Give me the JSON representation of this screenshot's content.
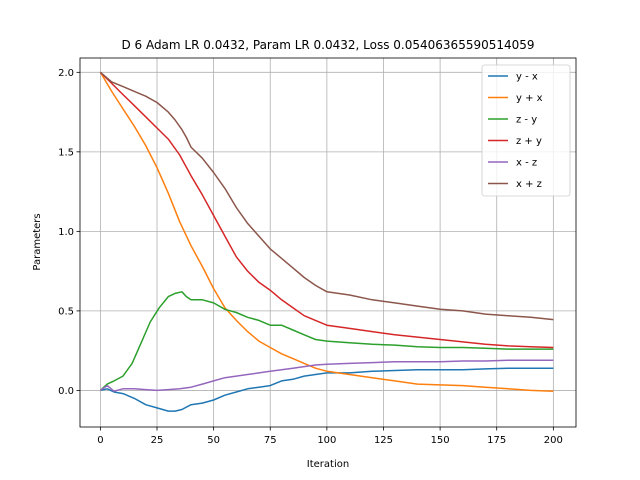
{
  "chart_data": {
    "type": "line",
    "title": "D 6 Adam LR 0.0432, Param LR 0.0432, Loss 0.05406365590514059",
    "xlabel": "Iteration",
    "ylabel": "Parameters",
    "xlim": [
      -9,
      210
    ],
    "ylim": [
      -0.23,
      2.09
    ],
    "xticks": [
      0,
      25,
      50,
      75,
      100,
      125,
      150,
      175,
      200
    ],
    "yticks": [
      0.0,
      0.5,
      1.0,
      1.5,
      2.0
    ],
    "ytick_labels": [
      "0.0",
      "0.5",
      "1.0",
      "1.5",
      "2.0"
    ],
    "grid": true,
    "legend_position": "top-right",
    "series": [
      {
        "name": "y - x",
        "color": "#1f77b4",
        "x": [
          0,
          3,
          6,
          10,
          15,
          20,
          25,
          30,
          33,
          36,
          40,
          45,
          50,
          55,
          60,
          65,
          70,
          75,
          80,
          85,
          90,
          95,
          100,
          110,
          120,
          130,
          140,
          150,
          160,
          170,
          180,
          190,
          200
        ],
        "y": [
          0.0,
          0.01,
          -0.01,
          -0.02,
          -0.05,
          -0.09,
          -0.11,
          -0.13,
          -0.13,
          -0.12,
          -0.09,
          -0.08,
          -0.06,
          -0.03,
          -0.01,
          0.01,
          0.02,
          0.03,
          0.06,
          0.07,
          0.09,
          0.1,
          0.11,
          0.11,
          0.12,
          0.125,
          0.13,
          0.13,
          0.13,
          0.135,
          0.14,
          0.14,
          0.14
        ]
      },
      {
        "name": "y + x",
        "color": "#ff7f0e",
        "x": [
          0,
          5,
          10,
          15,
          20,
          25,
          30,
          35,
          40,
          45,
          50,
          55,
          60,
          65,
          70,
          75,
          80,
          85,
          90,
          95,
          100,
          110,
          120,
          130,
          140,
          150,
          160,
          170,
          180,
          190,
          200
        ],
        "y": [
          2.0,
          1.88,
          1.77,
          1.66,
          1.54,
          1.4,
          1.24,
          1.06,
          0.91,
          0.78,
          0.64,
          0.52,
          0.44,
          0.37,
          0.31,
          0.27,
          0.23,
          0.2,
          0.17,
          0.14,
          0.12,
          0.1,
          0.08,
          0.06,
          0.04,
          0.035,
          0.03,
          0.02,
          0.01,
          0.0,
          -0.005
        ]
      },
      {
        "name": "z - y",
        "color": "#2ca02c",
        "x": [
          0,
          3,
          6,
          10,
          14,
          18,
          22,
          26,
          30,
          33,
          36,
          38,
          40,
          45,
          50,
          55,
          60,
          65,
          70,
          75,
          80,
          85,
          90,
          95,
          100,
          110,
          120,
          130,
          140,
          150,
          160,
          170,
          180,
          190,
          200
        ],
        "y": [
          0.0,
          0.04,
          0.06,
          0.09,
          0.17,
          0.3,
          0.43,
          0.52,
          0.59,
          0.61,
          0.62,
          0.59,
          0.57,
          0.57,
          0.55,
          0.51,
          0.49,
          0.46,
          0.44,
          0.41,
          0.41,
          0.38,
          0.35,
          0.32,
          0.31,
          0.3,
          0.29,
          0.285,
          0.275,
          0.27,
          0.27,
          0.265,
          0.26,
          0.26,
          0.26
        ]
      },
      {
        "name": "z + y",
        "color": "#d62728",
        "x": [
          0,
          5,
          10,
          15,
          20,
          25,
          30,
          35,
          40,
          45,
          50,
          55,
          60,
          65,
          70,
          75,
          80,
          85,
          90,
          95,
          100,
          110,
          120,
          130,
          140,
          150,
          160,
          170,
          180,
          190,
          200
        ],
        "y": [
          2.0,
          1.93,
          1.86,
          1.79,
          1.72,
          1.65,
          1.58,
          1.48,
          1.35,
          1.23,
          1.1,
          0.97,
          0.84,
          0.75,
          0.68,
          0.63,
          0.57,
          0.52,
          0.47,
          0.44,
          0.41,
          0.39,
          0.37,
          0.35,
          0.335,
          0.32,
          0.305,
          0.29,
          0.28,
          0.275,
          0.27
        ]
      },
      {
        "name": "x - z",
        "color": "#9467bd",
        "x": [
          0,
          3,
          6,
          10,
          15,
          20,
          25,
          30,
          35,
          40,
          45,
          50,
          55,
          60,
          65,
          70,
          75,
          80,
          85,
          90,
          95,
          100,
          110,
          120,
          130,
          140,
          150,
          160,
          170,
          180,
          190,
          200
        ],
        "y": [
          0.0,
          0.03,
          -0.005,
          0.01,
          0.01,
          0.005,
          0.0,
          0.005,
          0.01,
          0.02,
          0.04,
          0.06,
          0.08,
          0.09,
          0.1,
          0.11,
          0.12,
          0.13,
          0.14,
          0.15,
          0.16,
          0.165,
          0.17,
          0.175,
          0.18,
          0.18,
          0.18,
          0.185,
          0.185,
          0.19,
          0.19,
          0.19
        ]
      },
      {
        "name": "x + z",
        "color": "#8c564b",
        "x": [
          0,
          5,
          10,
          15,
          20,
          25,
          30,
          33,
          36,
          38,
          40,
          45,
          50,
          55,
          60,
          65,
          70,
          75,
          80,
          85,
          90,
          95,
          100,
          110,
          120,
          130,
          140,
          150,
          160,
          170,
          180,
          190,
          200
        ],
        "y": [
          2.0,
          1.94,
          1.91,
          1.88,
          1.85,
          1.81,
          1.75,
          1.7,
          1.64,
          1.59,
          1.53,
          1.46,
          1.37,
          1.27,
          1.15,
          1.05,
          0.97,
          0.89,
          0.83,
          0.77,
          0.71,
          0.66,
          0.62,
          0.6,
          0.57,
          0.55,
          0.53,
          0.51,
          0.5,
          0.48,
          0.47,
          0.46,
          0.445
        ]
      }
    ]
  }
}
